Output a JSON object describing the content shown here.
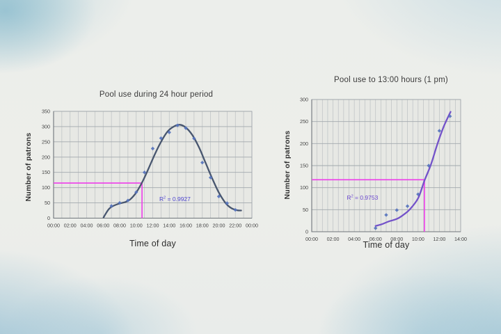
{
  "background": {
    "paper": "#edeeea",
    "wash": "#9fcadf",
    "plot_fill": "#e7e8e4",
    "grid_minor": "#bcc0c3",
    "grid_major": "#a2a8ad",
    "axis": "#6f757b",
    "tick_text": "#454545"
  },
  "chart_data": [
    {
      "type": "scatter",
      "title": "Pool use during 24 hour period",
      "xlabel": "Time of day",
      "ylabel": "Number of patrons",
      "x_ticks": [
        "00:00",
        "02:00",
        "04:00",
        "06:00",
        "08:00",
        "10:00",
        "12:00",
        "14:00",
        "16:00",
        "18:00",
        "20:00",
        "22:00",
        "00:00"
      ],
      "x_range_hours": [
        0,
        24
      ],
      "x_tick_step_hours": 2,
      "x_grid_step_hours": 1,
      "ylim": [
        0,
        350
      ],
      "y_tick_step": 50,
      "grid": true,
      "legend": false,
      "points": [
        [
          7,
          40
        ],
        [
          8,
          50
        ],
        [
          9,
          58
        ],
        [
          10,
          85
        ],
        [
          11,
          150
        ],
        [
          12,
          228
        ],
        [
          13,
          262
        ],
        [
          14,
          281
        ],
        [
          15,
          304
        ],
        [
          16,
          295
        ],
        [
          17,
          261
        ],
        [
          18,
          182
        ],
        [
          19,
          133
        ],
        [
          20,
          71
        ],
        [
          21,
          49
        ],
        [
          22,
          27
        ]
      ],
      "fit_curve": [
        [
          6.05,
          2
        ],
        [
          6.3,
          14
        ],
        [
          6.7,
          30
        ],
        [
          7.2,
          40
        ],
        [
          8,
          48
        ],
        [
          8.7,
          53
        ],
        [
          9.3,
          62
        ],
        [
          10,
          84
        ],
        [
          10.8,
          122
        ],
        [
          11.5,
          163
        ],
        [
          12.3,
          212
        ],
        [
          13,
          250
        ],
        [
          13.8,
          284
        ],
        [
          14.6,
          301
        ],
        [
          15.3,
          306
        ],
        [
          16,
          297
        ],
        [
          16.8,
          272
        ],
        [
          17.6,
          232
        ],
        [
          18.4,
          181
        ],
        [
          19.2,
          130
        ],
        [
          20,
          84
        ],
        [
          20.8,
          50
        ],
        [
          21.5,
          33
        ],
        [
          22.2,
          26
        ],
        [
          22.7,
          25
        ]
      ],
      "r_squared": "0.9927",
      "annotation_anchor": {
        "x_h": 12.8,
        "y_v": 56
      },
      "marker": {
        "x_h": 10.7,
        "y_v": 115
      },
      "colors": {
        "curve": "#48566f",
        "points": "#5673bd",
        "marker": "#ee3cea",
        "annotation": "#4f46cf"
      }
    },
    {
      "type": "scatter",
      "title": "Pool use to 13:00 hours (1 pm)",
      "xlabel": "Time of day",
      "ylabel": "Number of patrons",
      "x_ticks": [
        "00:00",
        "02:00",
        "04:00",
        "06:00",
        "08:00",
        "10:00",
        "12:00",
        "14:00"
      ],
      "x_range_hours": [
        0,
        14
      ],
      "x_tick_step_hours": 2,
      "x_grid_step_hours": 0.5,
      "ylim": [
        0,
        300
      ],
      "y_tick_step": 50,
      "grid": true,
      "legend": false,
      "points": [
        [
          6,
          8
        ],
        [
          7,
          38
        ],
        [
          8,
          49
        ],
        [
          9,
          58
        ],
        [
          10,
          85
        ],
        [
          11,
          150
        ],
        [
          12,
          229
        ],
        [
          13,
          262
        ]
      ],
      "fit_curve": [
        [
          6,
          13
        ],
        [
          6.6,
          17
        ],
        [
          7.2,
          23
        ],
        [
          8,
          29
        ],
        [
          8.6,
          38
        ],
        [
          9.2,
          50
        ],
        [
          10,
          76
        ],
        [
          10.6,
          116
        ],
        [
          11.2,
          152
        ],
        [
          11.8,
          198
        ],
        [
          12.4,
          238
        ],
        [
          13.05,
          272
        ]
      ],
      "r_squared": "0.9753",
      "annotation_anchor": {
        "x_h": 3.3,
        "y_v": 73
      },
      "marker": {
        "x_h": 10.6,
        "y_v": 118
      },
      "colors": {
        "curve": "#7352c9",
        "points": "#5673bd",
        "marker": "#ee3cea",
        "annotation": "#6b47cf"
      }
    }
  ]
}
